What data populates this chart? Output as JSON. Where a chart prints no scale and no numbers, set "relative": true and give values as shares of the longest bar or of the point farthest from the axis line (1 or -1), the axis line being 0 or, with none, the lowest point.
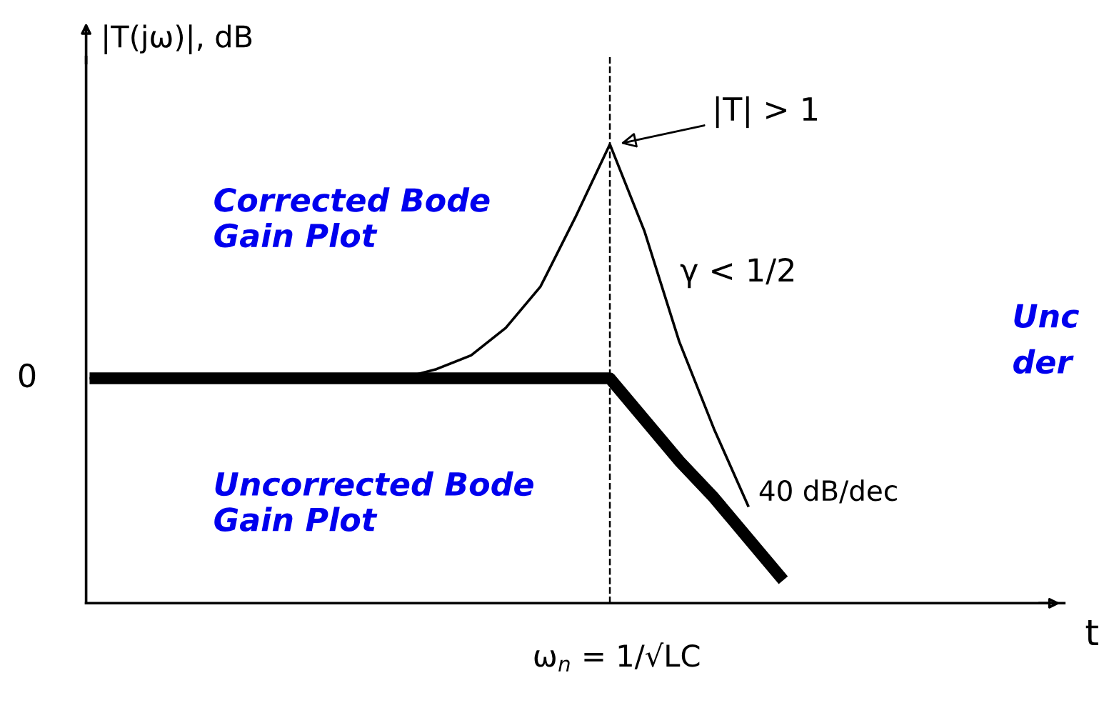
{
  "chart_data": {
    "type": "line",
    "relative": true,
    "ylabel": "|T(jω)|, dB",
    "categories": [
      null,
      null,
      null,
      null,
      null,
      null,
      null,
      null,
      null,
      null,
      null,
      null,
      null,
      null,
      null,
      null,
      null,
      null,
      null,
      null,
      null
    ],
    "series": [
      {
        "name": "Corrected Bode Gain Plot",
        "color": "#000000",
        "values": [
          0.49,
          0.49,
          0.49,
          0.49,
          0.49,
          0.49,
          0.49,
          0.49,
          0.49,
          0.49,
          0.51,
          0.54,
          0.6,
          0.69,
          0.84,
          1.0,
          0.81,
          0.57,
          0.38,
          0.21,
          null
        ]
      },
      {
        "name": "Uncorrected Bode Gain Plot",
        "color": "#000000",
        "values": [
          0.49,
          0.49,
          0.49,
          0.49,
          0.49,
          0.49,
          0.49,
          0.49,
          0.49,
          0.49,
          0.49,
          0.49,
          0.49,
          0.49,
          0.49,
          0.49,
          0.4,
          0.31,
          0.23,
          0.14,
          0.05
        ]
      }
    ],
    "annotations": [
      "|T| > 1",
      "γ < 1/2",
      "40 dB/dec",
      "0",
      "Unc",
      "der",
      "ω$_{n}$ = 1/√LC",
      "t"
    ],
    "legend": "top left",
    "grid": false,
    "marker": "none"
  }
}
